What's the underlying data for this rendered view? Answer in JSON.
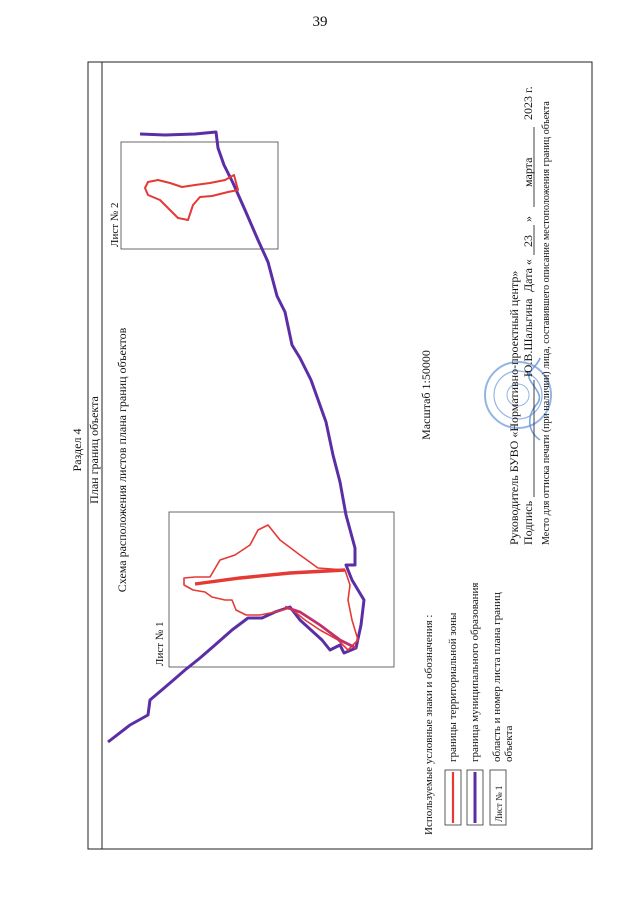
{
  "page_number": "39",
  "section": "Раздел 4",
  "frame_title": "План границ объекта",
  "scheme_title": "Схема расположения листов плана границ объектов",
  "scale": "Масштаб 1:50000",
  "sheets": [
    {
      "label": "Лист № 1"
    },
    {
      "label": "Лист № 2"
    }
  ],
  "legend": {
    "heading": "Используемые условные знаки и обозначения :",
    "items": [
      {
        "label": "границы территориальной зоны",
        "color": "#e53935"
      },
      {
        "label": "граница муниципального образования",
        "color": "#5b2ea6"
      },
      {
        "label_line1": "область и номер листа плана границ",
        "label_line2": "объекта",
        "symbol_text": "Лист № 1"
      }
    ]
  },
  "signature": {
    "line1": "Руководитель БУВО «Нормативно-проектный центр»",
    "podpis": "Подпись",
    "name": "Ю.В.Шальгина",
    "date_label": "Дата «",
    "day": "23",
    "day_close": "»",
    "month": "марта",
    "year": "2023 г.",
    "note": "Место для оттиска печати (при наличии) лица, составившего описание местоположения границ объекта"
  },
  "colors": {
    "zone": "#e53935",
    "municipal": "#5b2ea6",
    "stamp": "#5b8fd6"
  }
}
